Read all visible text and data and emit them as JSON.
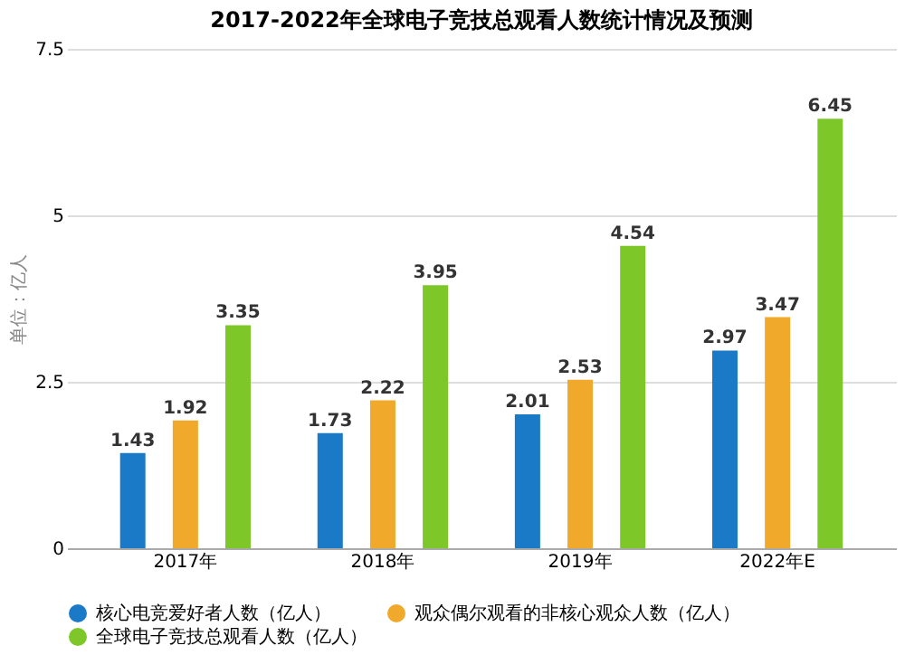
{
  "chart_data": {
    "type": "bar",
    "title": "2017-2022年全球电子竞技总观看人数统计情况及预测",
    "ylabel": "单位：亿人",
    "categories": [
      "2017年",
      "2018年",
      "2019年",
      "2022年E"
    ],
    "series": [
      {
        "name": "核心电竞爱好者人数（亿人）",
        "color": "#1a7ac8",
        "values": [
          1.43,
          1.73,
          2.01,
          2.97
        ]
      },
      {
        "name": "观众偶尔观看的非核心观众人数（亿人）",
        "color": "#f0a92a",
        "values": [
          1.92,
          2.22,
          2.53,
          3.47
        ]
      },
      {
        "name": "全球电子竞技总观看人数（亿人）",
        "color": "#7ec729",
        "values": [
          3.35,
          3.95,
          4.54,
          6.45
        ]
      }
    ],
    "ylim": [
      0,
      7.5
    ],
    "yticks": [
      0,
      2.5,
      5,
      7.5
    ],
    "grid": "y",
    "legend": "bottom",
    "data_labels": true
  }
}
